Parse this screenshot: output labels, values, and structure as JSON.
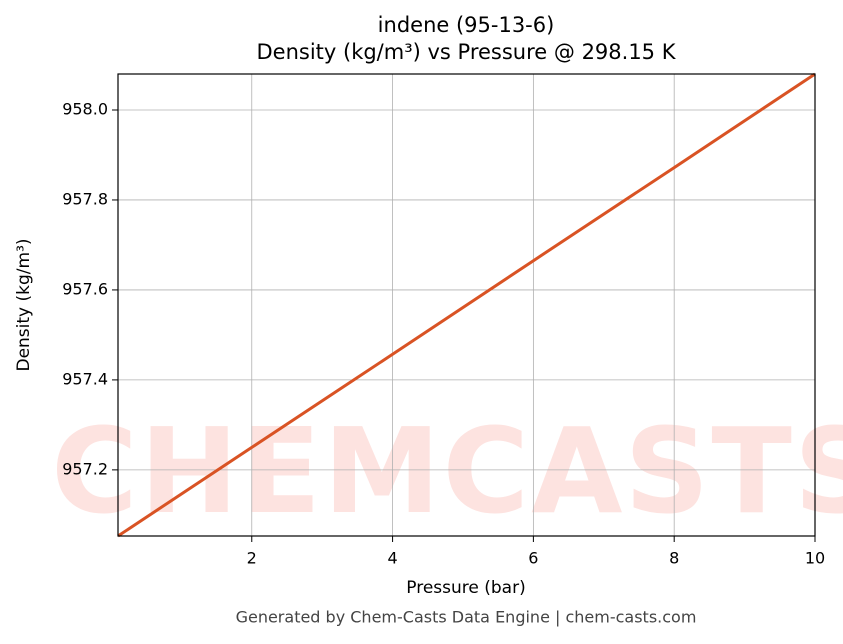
{
  "chart_data": {
    "type": "line",
    "title": "indene (95-13-6)",
    "subtitle": "Density (kg/m³) vs Pressure @ 298.15 K",
    "x_label": "Pressure (bar)",
    "y_label": "Density (kg/m³)",
    "footer": "Generated by Chem-Casts Data Engine | chem-casts.com",
    "watermark": "CHEMCASTS",
    "x": [
      0.1,
      2,
      4,
      6,
      8,
      10
    ],
    "series": [
      {
        "name": "Density",
        "color": "#d95324",
        "values": [
          957.053,
          957.25,
          957.457,
          957.665,
          957.872,
          958.08
        ]
      }
    ],
    "xlim": [
      0.1,
      10
    ],
    "ylim": [
      957.053,
      958.08
    ],
    "xticks": [
      2,
      4,
      6,
      8,
      10
    ],
    "yticks": [
      957.2,
      957.4,
      957.6,
      957.8,
      {
        "value": 958,
        "label": "958.0"
      }
    ],
    "grid": true
  }
}
